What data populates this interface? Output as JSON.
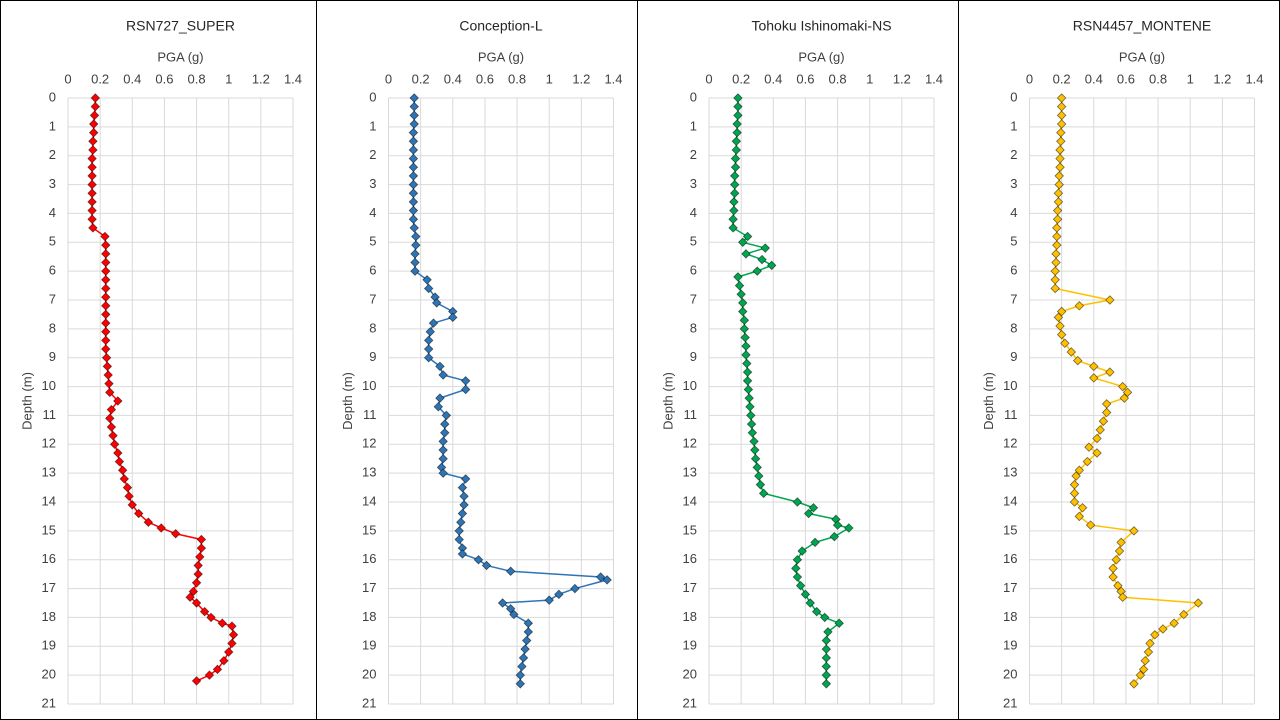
{
  "chart_data": [
    {
      "type": "line",
      "title": "RSN727_SUPER",
      "xlabel": "PGA (g)",
      "ylabel": "Depth (m)",
      "x_axis_position": "top",
      "y_reversed": true,
      "grid": true,
      "xlim": [
        0,
        1.4
      ],
      "xticks": [
        0,
        0.2,
        0.4,
        0.6,
        0.8,
        1,
        1.2,
        1.4
      ],
      "ylim": [
        0,
        21
      ],
      "yticks": [
        0,
        1,
        2,
        3,
        4,
        5,
        6,
        7,
        8,
        9,
        10,
        11,
        12,
        13,
        14,
        15,
        16,
        17,
        18,
        19,
        20,
        21
      ],
      "series": [
        {
          "color": "#ff0000",
          "y": [
            0,
            0.3,
            0.6,
            0.9,
            1.2,
            1.5,
            1.8,
            2.1,
            2.4,
            2.7,
            3,
            3.3,
            3.6,
            3.9,
            4.2,
            4.5,
            4.8,
            5.1,
            5.4,
            5.7,
            6,
            6.3,
            6.6,
            6.9,
            7.2,
            7.5,
            7.8,
            8.1,
            8.4,
            8.7,
            9,
            9.3,
            9.6,
            9.9,
            10.2,
            10.5,
            10.8,
            11.1,
            11.4,
            11.7,
            12,
            12.3,
            12.6,
            12.9,
            13.2,
            13.5,
            13.8,
            14.1,
            14.4,
            14.7,
            14.9,
            15.1,
            15.3,
            15.6,
            15.9,
            16.2,
            16.5,
            16.8,
            17.1,
            17.3,
            17.5,
            17.8,
            18,
            18.2,
            18.3,
            18.6,
            18.9,
            19.2,
            19.5,
            19.8,
            20,
            20.2
          ],
          "values": [
            0.17,
            0.17,
            0.165,
            0.16,
            0.16,
            0.155,
            0.155,
            0.15,
            0.15,
            0.15,
            0.15,
            0.15,
            0.15,
            0.15,
            0.15,
            0.155,
            0.23,
            0.235,
            0.235,
            0.235,
            0.235,
            0.235,
            0.235,
            0.235,
            0.235,
            0.235,
            0.235,
            0.235,
            0.235,
            0.235,
            0.24,
            0.245,
            0.25,
            0.255,
            0.26,
            0.31,
            0.27,
            0.26,
            0.27,
            0.28,
            0.29,
            0.31,
            0.32,
            0.34,
            0.35,
            0.37,
            0.38,
            0.4,
            0.44,
            0.5,
            0.58,
            0.67,
            0.83,
            0.83,
            0.82,
            0.81,
            0.81,
            0.8,
            0.78,
            0.76,
            0.8,
            0.85,
            0.89,
            0.96,
            1.02,
            1.03,
            1.02,
            1,
            0.97,
            0.93,
            0.88,
            0.8
          ]
        }
      ]
    },
    {
      "type": "line",
      "title": "Conception-L",
      "xlabel": "PGA (g)",
      "ylabel": "Depth (m)",
      "x_axis_position": "top",
      "y_reversed": true,
      "grid": true,
      "xlim": [
        0,
        1.4
      ],
      "xticks": [
        0,
        0.2,
        0.4,
        0.6,
        0.8,
        1,
        1.2,
        1.4
      ],
      "ylim": [
        0,
        21
      ],
      "yticks": [
        0,
        1,
        2,
        3,
        4,
        5,
        6,
        7,
        8,
        9,
        10,
        11,
        12,
        13,
        14,
        15,
        16,
        17,
        18,
        19,
        20,
        21
      ],
      "series": [
        {
          "color": "#2e75b6",
          "y": [
            0,
            0.3,
            0.6,
            0.9,
            1.2,
            1.5,
            1.8,
            2.1,
            2.4,
            2.7,
            3,
            3.3,
            3.6,
            3.9,
            4.2,
            4.5,
            4.8,
            5.1,
            5.4,
            5.7,
            6,
            6.3,
            6.6,
            6.9,
            7.1,
            7.4,
            7.6,
            7.8,
            8.1,
            8.4,
            8.7,
            9,
            9.3,
            9.6,
            9.8,
            10.1,
            10.4,
            10.7,
            11,
            11.3,
            11.6,
            11.9,
            12.2,
            12.5,
            12.8,
            13,
            13.2,
            13.5,
            13.8,
            14.1,
            14.4,
            14.7,
            15,
            15.3,
            15.6,
            15.8,
            16,
            16.2,
            16.4,
            16.6,
            16.7,
            17,
            17.2,
            17.4,
            17.5,
            17.7,
            17.9,
            18.2,
            18.5,
            18.8,
            19.1,
            19.4,
            19.7,
            20,
            20.3
          ],
          "values": [
            0.16,
            0.16,
            0.16,
            0.16,
            0.155,
            0.155,
            0.155,
            0.155,
            0.155,
            0.155,
            0.155,
            0.155,
            0.155,
            0.155,
            0.155,
            0.16,
            0.17,
            0.17,
            0.165,
            0.165,
            0.165,
            0.24,
            0.25,
            0.29,
            0.3,
            0.4,
            0.4,
            0.28,
            0.26,
            0.25,
            0.25,
            0.25,
            0.32,
            0.34,
            0.48,
            0.48,
            0.32,
            0.31,
            0.36,
            0.35,
            0.35,
            0.34,
            0.34,
            0.34,
            0.33,
            0.34,
            0.48,
            0.46,
            0.47,
            0.47,
            0.46,
            0.45,
            0.44,
            0.44,
            0.46,
            0.46,
            0.56,
            0.61,
            0.76,
            1.32,
            1.36,
            1.16,
            1.06,
            1,
            0.71,
            0.76,
            0.78,
            0.87,
            0.87,
            0.86,
            0.85,
            0.84,
            0.83,
            0.82,
            0.82
          ]
        }
      ]
    },
    {
      "type": "line",
      "title": "Tohoku Ishinomaki-NS",
      "xlabel": "PGA (g)",
      "ylabel": "Depth (m)",
      "x_axis_position": "top",
      "y_reversed": true,
      "grid": true,
      "xlim": [
        0,
        1.4
      ],
      "xticks": [
        0,
        0.2,
        0.4,
        0.6,
        0.8,
        1,
        1.2,
        1.4
      ],
      "ylim": [
        0,
        21
      ],
      "yticks": [
        0,
        1,
        2,
        3,
        4,
        5,
        6,
        7,
        8,
        9,
        10,
        11,
        12,
        13,
        14,
        15,
        16,
        17,
        18,
        19,
        20,
        21
      ],
      "series": [
        {
          "color": "#00a550",
          "y": [
            0,
            0.3,
            0.6,
            0.9,
            1.2,
            1.5,
            1.8,
            2.1,
            2.4,
            2.7,
            3,
            3.3,
            3.6,
            3.9,
            4.2,
            4.5,
            4.8,
            5,
            5.2,
            5.4,
            5.6,
            5.8,
            6,
            6.2,
            6.5,
            6.8,
            7.1,
            7.4,
            7.7,
            8,
            8.3,
            8.6,
            8.9,
            9.2,
            9.5,
            9.8,
            10.1,
            10.4,
            10.7,
            11,
            11.3,
            11.6,
            11.9,
            12.2,
            12.5,
            12.8,
            13.1,
            13.4,
            13.7,
            14,
            14.2,
            14.4,
            14.6,
            14.8,
            14.9,
            15.2,
            15.4,
            15.7,
            16,
            16.3,
            16.6,
            16.9,
            17.2,
            17.5,
            17.8,
            18,
            18.2,
            18.5,
            18.8,
            19.1,
            19.4,
            19.7,
            20,
            20.3
          ],
          "values": [
            0.18,
            0.18,
            0.18,
            0.175,
            0.175,
            0.17,
            0.17,
            0.165,
            0.165,
            0.16,
            0.16,
            0.16,
            0.155,
            0.155,
            0.15,
            0.15,
            0.24,
            0.21,
            0.35,
            0.23,
            0.33,
            0.39,
            0.3,
            0.18,
            0.19,
            0.2,
            0.21,
            0.21,
            0.22,
            0.22,
            0.225,
            0.23,
            0.23,
            0.235,
            0.24,
            0.24,
            0.245,
            0.25,
            0.255,
            0.26,
            0.265,
            0.27,
            0.28,
            0.285,
            0.29,
            0.3,
            0.31,
            0.32,
            0.34,
            0.55,
            0.65,
            0.62,
            0.79,
            0.8,
            0.87,
            0.78,
            0.66,
            0.58,
            0.55,
            0.54,
            0.55,
            0.57,
            0.6,
            0.63,
            0.67,
            0.72,
            0.81,
            0.74,
            0.73,
            0.73,
            0.73,
            0.73,
            0.73,
            0.73
          ]
        }
      ]
    },
    {
      "type": "line",
      "title": "RSN4457_MONTENE",
      "xlabel": "PGA (g)",
      "ylabel": "Depth (m)",
      "x_axis_position": "top",
      "y_reversed": true,
      "grid": true,
      "xlim": [
        0,
        1.4
      ],
      "xticks": [
        0,
        0.2,
        0.4,
        0.6,
        0.8,
        1,
        1.2,
        1.4
      ],
      "ylim": [
        0,
        21
      ],
      "yticks": [
        0,
        1,
        2,
        3,
        4,
        5,
        6,
        7,
        8,
        9,
        10,
        11,
        12,
        13,
        14,
        15,
        16,
        17,
        18,
        19,
        20,
        21
      ],
      "series": [
        {
          "color": "#ffc000",
          "y": [
            0,
            0.3,
            0.6,
            0.9,
            1.2,
            1.5,
            1.8,
            2.1,
            2.4,
            2.7,
            3,
            3.3,
            3.6,
            3.9,
            4.2,
            4.5,
            4.8,
            5.1,
            5.4,
            5.7,
            6,
            6.3,
            6.6,
            7,
            7.2,
            7.4,
            7.6,
            7.9,
            8.2,
            8.5,
            8.8,
            9.1,
            9.3,
            9.5,
            9.7,
            10,
            10.2,
            10.4,
            10.6,
            10.9,
            11.2,
            11.5,
            11.8,
            12.1,
            12.3,
            12.6,
            12.9,
            13.1,
            13.4,
            13.7,
            14,
            14.2,
            14.5,
            14.8,
            15,
            15.4,
            15.7,
            16,
            16.3,
            16.6,
            16.9,
            17.1,
            17.3,
            17.5,
            17.9,
            18.2,
            18.4,
            18.6,
            18.9,
            19.2,
            19.5,
            19.8,
            20,
            20.3
          ],
          "values": [
            0.2,
            0.2,
            0.2,
            0.2,
            0.195,
            0.195,
            0.19,
            0.19,
            0.19,
            0.185,
            0.185,
            0.18,
            0.18,
            0.175,
            0.175,
            0.17,
            0.17,
            0.17,
            0.165,
            0.165,
            0.16,
            0.16,
            0.16,
            0.5,
            0.31,
            0.2,
            0.18,
            0.19,
            0.2,
            0.22,
            0.26,
            0.3,
            0.4,
            0.5,
            0.4,
            0.58,
            0.61,
            0.59,
            0.48,
            0.48,
            0.46,
            0.44,
            0.42,
            0.37,
            0.42,
            0.36,
            0.31,
            0.29,
            0.28,
            0.28,
            0.28,
            0.33,
            0.31,
            0.38,
            0.65,
            0.57,
            0.56,
            0.54,
            0.52,
            0.52,
            0.55,
            0.57,
            0.58,
            1.05,
            0.96,
            0.9,
            0.83,
            0.78,
            0.75,
            0.74,
            0.72,
            0.71,
            0.69,
            0.65
          ]
        }
      ]
    }
  ]
}
